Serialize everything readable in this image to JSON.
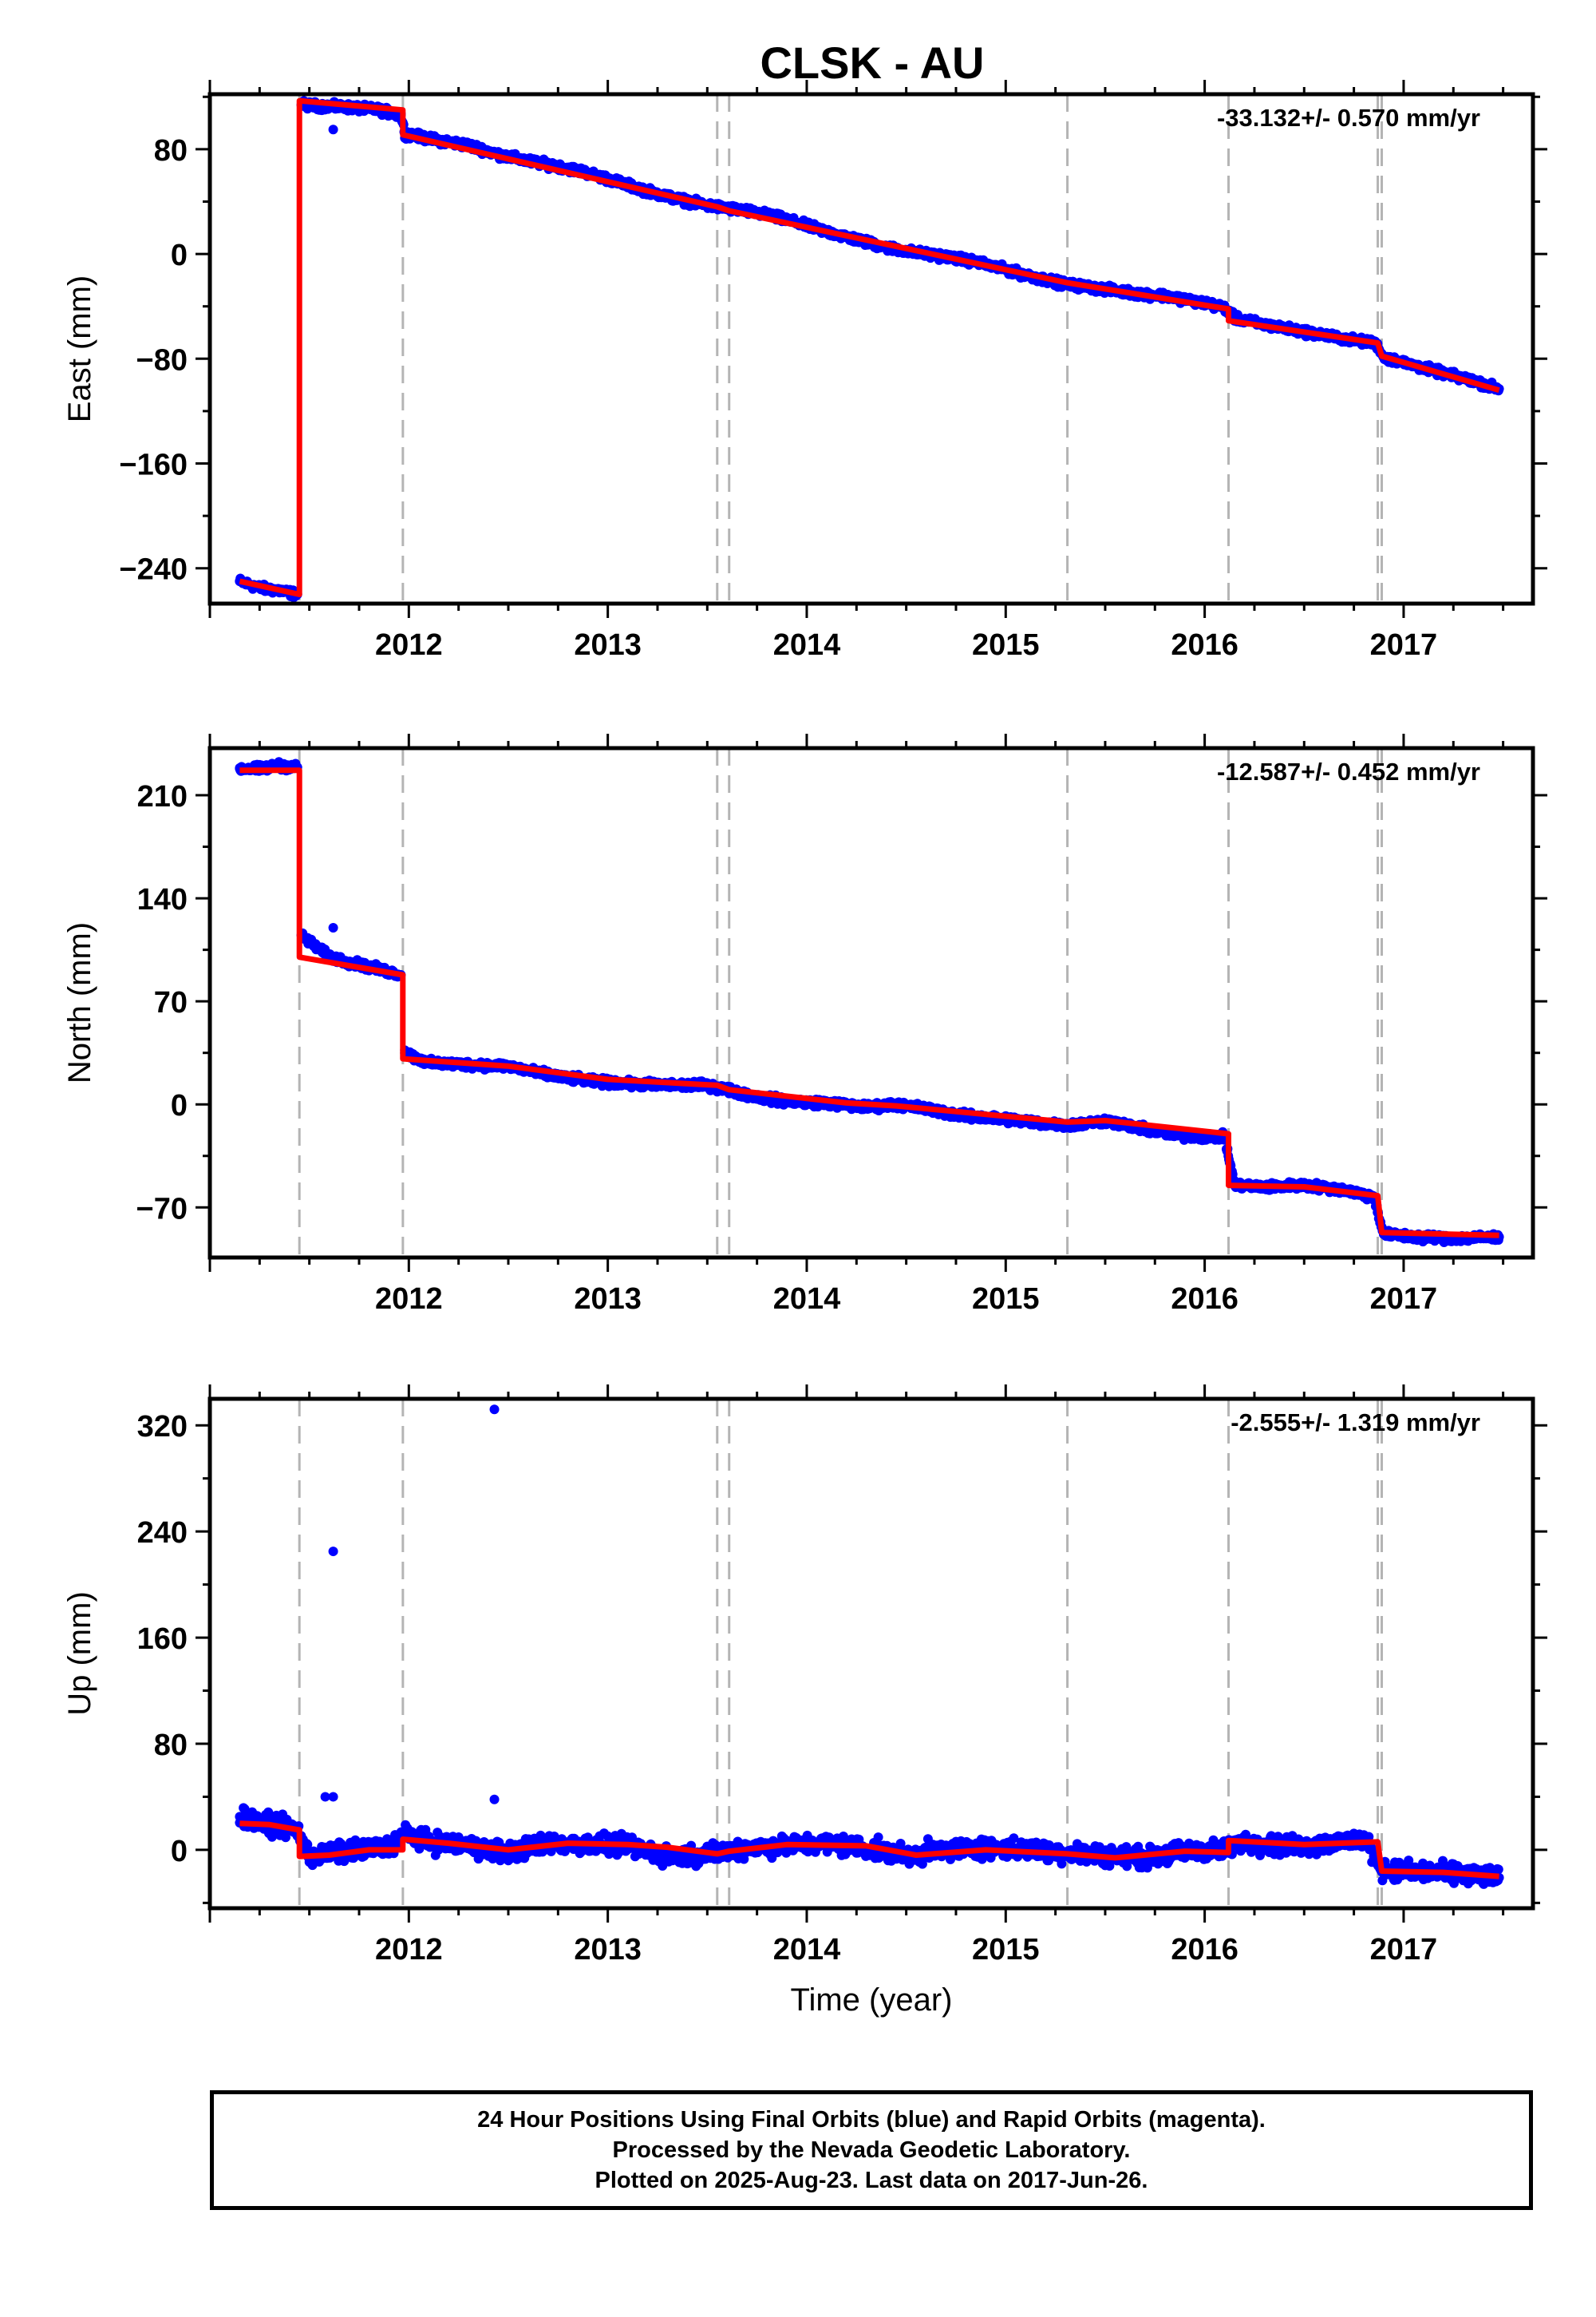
{
  "title": "CLSK - AU",
  "colors": {
    "data_points": "#0000ff",
    "model_fit": "#ff0000",
    "event_lines": "#b4b4b4",
    "frame": "#000000"
  },
  "footer": {
    "line1": "24 Hour Positions Using Final Orbits (blue) and Rapid Orbits (magenta).",
    "line2": "Processed by the Nevada Geodetic Laboratory.",
    "line3": "Plotted on 2025-Aug-23. Last data on 2017-Jun-26."
  },
  "chart_data": [
    {
      "type": "scatter",
      "component": "East",
      "ylabel": "East (mm)",
      "xlabel": "",
      "xlim": [
        2011.0,
        2017.65
      ],
      "ylim": [
        -267,
        122
      ],
      "yticks": [
        -240,
        -160,
        -80,
        0,
        80
      ],
      "xticks": [
        2012,
        2013,
        2014,
        2015,
        2016,
        2017
      ],
      "rate_annotation": "-33.132+/- 0.570 mm/yr",
      "event_lines": [
        2011.45,
        2011.97,
        2013.55,
        2013.61,
        2015.31,
        2016.12,
        2016.87,
        2016.89
      ],
      "series": [
        {
          "style": "points",
          "x": [
            2011.15,
            2011.25,
            2011.35,
            2011.44,
            2011.46,
            2011.55,
            2011.7,
            2011.85,
            2011.96,
            2011.98,
            2012.1,
            2012.3,
            2012.45,
            2012.6,
            2012.75,
            2012.9,
            2013.05,
            2013.2,
            2013.35,
            2013.5,
            2013.65,
            2013.8,
            2013.95,
            2014.1,
            2014.25,
            2014.4,
            2014.55,
            2014.7,
            2014.85,
            2015.0,
            2015.15,
            2015.3,
            2015.35,
            2015.5,
            2015.65,
            2015.8,
            2015.95,
            2016.1,
            2016.15,
            2016.3,
            2016.45,
            2016.6,
            2016.75,
            2016.86,
            2016.9,
            2017.05,
            2017.2,
            2017.35,
            2017.48
          ],
          "y": [
            -250,
            -255,
            -257,
            -260,
            114,
            113,
            112,
            110,
            106,
            92,
            88,
            83,
            76,
            71,
            67,
            62,
            55,
            48,
            42,
            37,
            34,
            30,
            24,
            17,
            11,
            5,
            1,
            -2,
            -6,
            -12,
            -18,
            -23,
            -24,
            -27,
            -30,
            -32,
            -36,
            -41,
            -49,
            -54,
            -58,
            -62,
            -66,
            -68,
            -79,
            -85,
            -91,
            -97,
            -103
          ]
        },
        {
          "style": "outliers",
          "x": [
            2011.62
          ],
          "y": [
            95
          ]
        },
        {
          "style": "line",
          "x": [
            2011.15,
            2011.45,
            2011.45,
            2011.97,
            2011.97,
            2013.55,
            2013.61,
            2015.31,
            2016.12,
            2016.12,
            2016.87,
            2016.89,
            2017.48
          ],
          "y": [
            -250,
            -260,
            117,
            110,
            91,
            36,
            33,
            -22,
            -42,
            -51,
            -68,
            -78,
            -104
          ]
        }
      ]
    },
    {
      "type": "scatter",
      "component": "North",
      "ylabel": "North (mm)",
      "xlabel": "",
      "xlim": [
        2011.0,
        2017.65
      ],
      "ylim": [
        -104,
        242
      ],
      "yticks": [
        -70,
        0,
        70,
        140,
        210
      ],
      "xticks": [
        2012,
        2013,
        2014,
        2015,
        2016,
        2017
      ],
      "rate_annotation": "-12.587+/- 0.452 mm/yr",
      "event_lines": [
        2011.45,
        2011.97,
        2013.55,
        2013.61,
        2015.31,
        2016.12,
        2016.87,
        2016.89
      ],
      "series": [
        {
          "style": "points",
          "x": [
            2011.15,
            2011.25,
            2011.35,
            2011.44,
            2011.46,
            2011.6,
            2011.75,
            2011.9,
            2011.96,
            2011.98,
            2012.1,
            2012.3,
            2012.5,
            2012.7,
            2012.9,
            2013.1,
            2013.3,
            2013.5,
            2013.6,
            2013.75,
            2013.9,
            2014.1,
            2014.3,
            2014.45,
            2014.6,
            2014.8,
            2015.0,
            2015.2,
            2015.35,
            2015.5,
            2015.7,
            2015.85,
            2016.0,
            2016.1,
            2016.15,
            2016.3,
            2016.5,
            2016.7,
            2016.85,
            2016.9,
            2017.05,
            2017.25,
            2017.48
          ],
          "y": [
            228,
            228,
            230,
            229,
            115,
            100,
            95,
            90,
            88,
            35,
            28,
            27,
            26,
            20,
            16,
            14,
            13,
            13,
            10,
            5,
            2,
            1,
            -2,
            0,
            -3,
            -8,
            -10,
            -13,
            -14,
            -11,
            -17,
            -21,
            -22,
            -22,
            -55,
            -56,
            -55,
            -58,
            -63,
            -88,
            -90,
            -91,
            -90
          ]
        },
        {
          "style": "outliers",
          "x": [
            2011.62
          ],
          "y": [
            120
          ]
        },
        {
          "style": "line",
          "x": [
            2011.15,
            2011.45,
            2011.45,
            2011.97,
            2011.97,
            2012.5,
            2013.0,
            2013.55,
            2013.61,
            2014.2,
            2014.45,
            2015.31,
            2015.5,
            2016.12,
            2016.12,
            2016.5,
            2016.87,
            2016.89,
            2017.48
          ],
          "y": [
            227,
            227,
            100,
            88,
            31,
            26,
            17,
            13,
            10,
            1,
            -1,
            -12,
            -11,
            -20,
            -55,
            -56,
            -62,
            -87,
            -89
          ]
        }
      ]
    },
    {
      "type": "scatter",
      "component": "Up",
      "ylabel": "Up (mm)",
      "xlabel": "Time (year)",
      "xlim": [
        2011.0,
        2017.65
      ],
      "ylim": [
        -44,
        340
      ],
      "yticks": [
        0,
        80,
        160,
        240,
        320
      ],
      "xticks": [
        2012,
        2013,
        2014,
        2015,
        2016,
        2017
      ],
      "rate_annotation": "-2.555+/- 1.319 mm/yr",
      "event_lines": [
        2011.45,
        2011.97,
        2013.55,
        2013.61,
        2015.31,
        2016.12,
        2016.87,
        2016.89
      ],
      "series": [
        {
          "style": "points",
          "x": [
            2011.15,
            2011.25,
            2011.35,
            2011.44,
            2011.5,
            2011.6,
            2011.75,
            2011.9,
            2011.98,
            2012.1,
            2012.3,
            2012.5,
            2012.7,
            2012.9,
            2013.1,
            2013.3,
            2013.5,
            2013.7,
            2013.9,
            2014.1,
            2014.3,
            2014.5,
            2014.7,
            2014.9,
            2015.1,
            2015.3,
            2015.5,
            2015.7,
            2015.9,
            2016.1,
            2016.2,
            2016.4,
            2016.6,
            2016.8,
            2016.9,
            2017.1,
            2017.3,
            2017.48
          ],
          "y": [
            25,
            20,
            18,
            15,
            -5,
            -3,
            0,
            2,
            12,
            6,
            3,
            -2,
            5,
            4,
            3,
            -5,
            -3,
            2,
            3,
            5,
            1,
            -4,
            0,
            2,
            0,
            -2,
            -4,
            -6,
            -1,
            0,
            6,
            3,
            4,
            8,
            -15,
            -17,
            -18,
            -21
          ]
        },
        {
          "style": "outliers",
          "x": [
            2012.43,
            2011.62,
            2011.58,
            2011.62,
            2012.43
          ],
          "y": [
            332,
            225,
            40,
            40,
            38
          ]
        },
        {
          "style": "line",
          "x": [
            2011.15,
            2011.3,
            2011.45,
            2011.45,
            2011.6,
            2011.8,
            2011.97,
            2011.97,
            2012.2,
            2012.5,
            2012.8,
            2013.1,
            2013.3,
            2013.55,
            2013.61,
            2013.9,
            2014.3,
            2014.55,
            2014.9,
            2015.31,
            2015.55,
            2015.9,
            2016.12,
            2016.12,
            2016.5,
            2016.87,
            2016.89,
            2017.2,
            2017.48
          ],
          "y": [
            20,
            19,
            15,
            -5,
            -4,
            0,
            0,
            8,
            5,
            0,
            5,
            4,
            2,
            -3,
            -1,
            4,
            3,
            -4,
            0,
            -3,
            -6,
            -1,
            -2,
            7,
            4,
            6,
            -16,
            -17,
            -20
          ]
        }
      ]
    }
  ]
}
